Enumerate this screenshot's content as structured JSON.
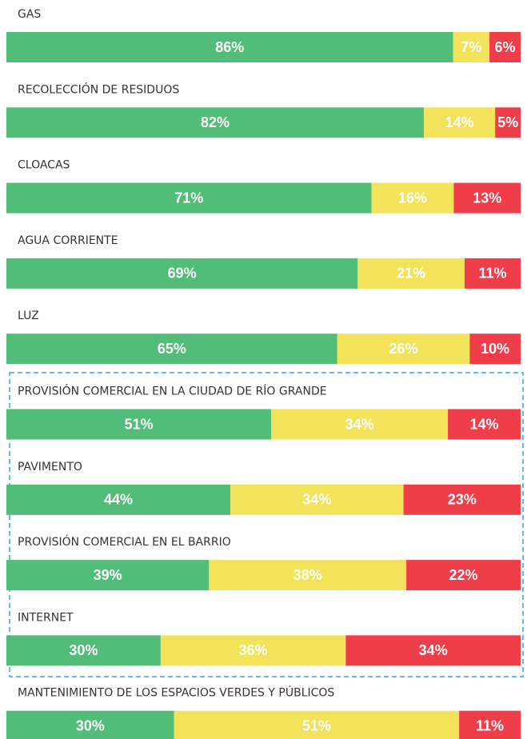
{
  "chart_data": {
    "type": "bar",
    "orientation": "horizontal",
    "stacked": true,
    "categories": [
      "GAS",
      "RECOLECCIÓN DE RESIDUOS",
      "CLOACAS",
      "AGUA CORRIENTE",
      "LUZ",
      "PROVISIÓN COMERCIAL EN LA CIUDAD DE RÍO GRANDE",
      "PAVIMENTO",
      "PROVISIÓN COMERCIAL EN EL BARRIO",
      "INTERNET",
      "MANTENIMIENTO DE LOS ESPACIOS VERDES Y PÚBLICOS"
    ],
    "series": [
      {
        "color": "#52bd78",
        "values": [
          86,
          82,
          71,
          69,
          65,
          51,
          44,
          39,
          30,
          30
        ],
        "value_labels": [
          "86%",
          "82%",
          "71%",
          "69%",
          "65%",
          "51%",
          "44%",
          "39%",
          "30%",
          "30%"
        ]
      },
      {
        "color": "#f2e35a",
        "values": [
          7,
          14,
          16,
          21,
          26,
          34,
          34,
          38,
          36,
          51
        ],
        "value_labels": [
          "7%",
          "14%",
          "16%",
          "21%",
          "26%",
          "34%",
          "34%",
          "38%",
          "36%",
          "51%"
        ]
      },
      {
        "color": "#ef3e4a",
        "values": [
          6,
          5,
          13,
          11,
          10,
          14,
          23,
          22,
          34,
          11
        ],
        "value_labels": [
          "6%",
          "5%",
          "13%",
          "11%",
          "10%",
          "14%",
          "23%",
          "22%",
          "34%",
          "11%"
        ]
      }
    ]
  }
}
